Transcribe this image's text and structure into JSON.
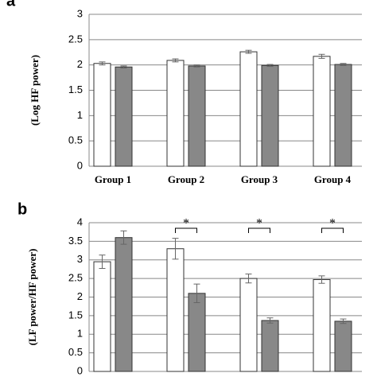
{
  "chart_data": [
    {
      "type": "bar",
      "panel_label": "a",
      "ylabel": "(Log HF power)",
      "categories": [
        "Group 1",
        "Group 2",
        "Group 3",
        "Group 4"
      ],
      "series": [
        {
          "color": "#ffffff",
          "values": [
            2.03,
            2.09,
            2.26,
            2.17
          ],
          "errors": [
            0.03,
            0.03,
            0.03,
            0.04
          ]
        },
        {
          "color": "#888888",
          "values": [
            1.96,
            1.98,
            1.99,
            2.01
          ],
          "errors": [
            0.02,
            0.02,
            0.02,
            0.02
          ]
        }
      ],
      "ylim": [
        0,
        3
      ],
      "yticks": [
        0,
        0.5,
        1,
        1.5,
        2,
        2.5,
        3
      ],
      "grid": true
    },
    {
      "type": "bar",
      "panel_label": "b",
      "ylabel": "(LF power/HF power)",
      "categories": [
        null,
        null,
        null,
        null
      ],
      "series": [
        {
          "color": "#ffffff",
          "values": [
            2.95,
            3.3,
            2.5,
            2.47
          ],
          "errors": [
            0.18,
            0.28,
            0.12,
            0.1
          ]
        },
        {
          "color": "#888888",
          "values": [
            3.6,
            2.1,
            1.37,
            1.35
          ],
          "errors": [
            0.18,
            0.25,
            0.07,
            0.06
          ]
        }
      ],
      "ylim": [
        0,
        4
      ],
      "yticks": [
        0,
        0.5,
        1,
        1.5,
        2,
        2.5,
        3,
        3.5,
        4
      ],
      "grid": true,
      "annotations": [
        {
          "text": "*",
          "category_index": 1
        },
        {
          "text": "*",
          "category_index": 2
        },
        {
          "text": "*",
          "category_index": 3
        }
      ]
    }
  ]
}
